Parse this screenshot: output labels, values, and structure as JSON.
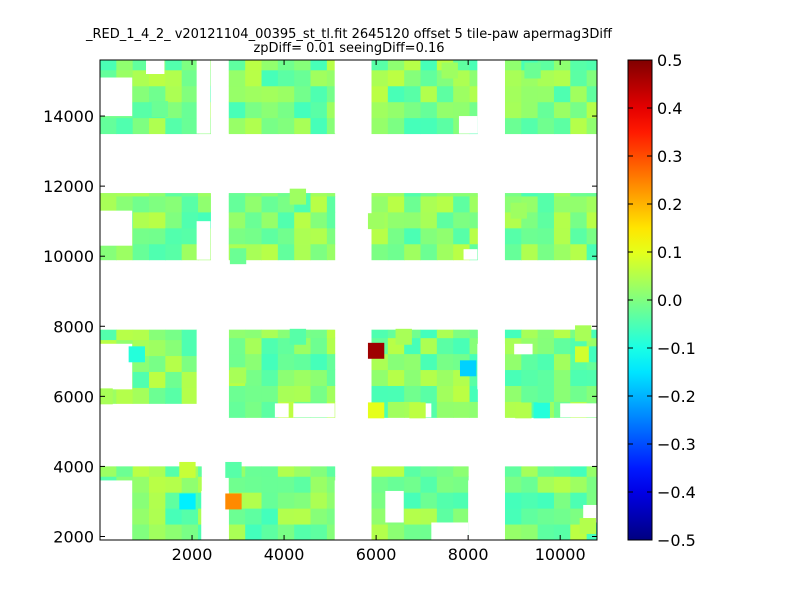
{
  "chart_data": {
    "type": "heatmap",
    "title": "_RED_1_4_2_ v20121104_00395_st_tl.fit 2645120 offset 5 tile-paw apermag3Diff",
    "subtitle": "zpDiff= 0.01 seeingDiff=0.16",
    "xlabel": "",
    "ylabel": "",
    "xlim": [
      0,
      10800
    ],
    "ylim": [
      1900,
      15600
    ],
    "x_ticks": [
      "2000",
      "4000",
      "6000",
      "8000",
      "10000"
    ],
    "y_ticks": [
      "2000",
      "4000",
      "6000",
      "8000",
      "10000",
      "12000",
      "14000"
    ],
    "colorbar": {
      "colormap": "jet",
      "vmin": -0.5,
      "vmax": 0.5,
      "ticks": [
        "0.5",
        "0.4",
        "0.3",
        "0.2",
        "0.1",
        "0.0",
        "−0.1",
        "−0.2",
        "−0.3",
        "−0.4",
        "−0.5"
      ]
    },
    "cell_size": [
      355,
      455
    ],
    "background_value": 0.0,
    "cell_regions": [
      {
        "x": [
          0,
          2200
        ],
        "y": [
          1900,
          4000
        ]
      },
      {
        "x": [
          2800,
          5100
        ],
        "y": [
          1900,
          4000
        ]
      },
      {
        "x": [
          5900,
          8000
        ],
        "y": [
          1900,
          4000
        ]
      },
      {
        "x": [
          8800,
          10800
        ],
        "y": [
          1900,
          4000
        ]
      },
      {
        "x": [
          0,
          2100
        ],
        "y": [
          5800,
          7900
        ]
      },
      {
        "x": [
          2800,
          5100
        ],
        "y": [
          5400,
          7900
        ]
      },
      {
        "x": [
          5900,
          8200
        ],
        "y": [
          5400,
          7900
        ]
      },
      {
        "x": [
          8800,
          10800
        ],
        "y": [
          5400,
          7900
        ]
      },
      {
        "x": [
          0,
          2400
        ],
        "y": [
          9900,
          11800
        ]
      },
      {
        "x": [
          2800,
          5100
        ],
        "y": [
          9900,
          11800
        ]
      },
      {
        "x": [
          5900,
          8200
        ],
        "y": [
          9900,
          11800
        ]
      },
      {
        "x": [
          8800,
          10800
        ],
        "y": [
          9900,
          11800
        ]
      },
      {
        "x": [
          0,
          2400
        ],
        "y": [
          13500,
          15600
        ]
      },
      {
        "x": [
          2800,
          5100
        ],
        "y": [
          13500,
          15600
        ]
      },
      {
        "x": [
          5900,
          8200
        ],
        "y": [
          13500,
          15600
        ]
      },
      {
        "x": [
          8800,
          10800
        ],
        "y": [
          13500,
          15600
        ]
      }
    ],
    "white_gaps": [
      {
        "x": [
          0,
          700
        ],
        "y": [
          1900,
          3600
        ]
      },
      {
        "x": [
          2200,
          2800
        ],
        "y": [
          1900,
          3300
        ]
      },
      {
        "x": [
          5100,
          5900
        ],
        "y": [
          1900,
          3600
        ]
      },
      {
        "x": [
          6200,
          6600
        ],
        "y": [
          2400,
          3300
        ]
      },
      {
        "x": [
          7200,
          8000
        ],
        "y": [
          1900,
          2400
        ]
      },
      {
        "x": [
          8000,
          8800
        ],
        "y": [
          1900,
          3600
        ]
      },
      {
        "x": [
          10500,
          10800
        ],
        "y": [
          2400,
          2900
        ]
      },
      {
        "x": [
          0,
          700
        ],
        "y": [
          6200,
          7500
        ]
      },
      {
        "x": [
          2100,
          2800
        ],
        "y": [
          5400,
          7900
        ]
      },
      {
        "x": [
          4200,
          5100
        ],
        "y": [
          5400,
          5800
        ]
      },
      {
        "x": [
          3800,
          4100
        ],
        "y": [
          5400,
          5800
        ]
      },
      {
        "x": [
          6900,
          7200
        ],
        "y": [
          5400,
          5800
        ]
      },
      {
        "x": [
          8200,
          8800
        ],
        "y": [
          6200,
          7500
        ]
      },
      {
        "x": [
          9000,
          9400
        ],
        "y": [
          7200,
          7500
        ]
      },
      {
        "x": [
          10000,
          10800
        ],
        "y": [
          5400,
          5800
        ]
      },
      {
        "x": [
          0,
          700
        ],
        "y": [
          10300,
          11300
        ]
      },
      {
        "x": [
          2100,
          2400
        ],
        "y": [
          9900,
          11000
        ]
      },
      {
        "x": [
          7900,
          8200
        ],
        "y": [
          9900,
          10200
        ]
      },
      {
        "x": [
          0,
          700
        ],
        "y": [
          14000,
          15100
        ]
      },
      {
        "x": [
          1000,
          1400
        ],
        "y": [
          15200,
          15600
        ]
      },
      {
        "x": [
          2100,
          2400
        ],
        "y": [
          13500,
          15600
        ]
      },
      {
        "x": [
          5100,
          5900
        ],
        "y": [
          13500,
          15600
        ]
      },
      {
        "x": [
          7800,
          8200
        ],
        "y": [
          13500,
          14000
        ]
      },
      {
        "x": [
          8200,
          8800
        ],
        "y": [
          13500,
          15600
        ]
      }
    ],
    "cells": [
      {
        "x": 6000,
        "y": 7300,
        "value": 0.47
      },
      {
        "x": 8000,
        "y": 6800,
        "value": -0.17
      },
      {
        "x": 2900,
        "y": 3000,
        "value": 0.24
      },
      {
        "x": 1900,
        "y": 3000,
        "value": -0.14
      },
      {
        "x": 800,
        "y": 7200,
        "value": -0.09
      },
      {
        "x": 10500,
        "y": 7200,
        "value": 0.08
      },
      {
        "x": 10800,
        "y": 7200,
        "value": -0.06
      },
      {
        "x": 9600,
        "y": 5600,
        "value": -0.09
      },
      {
        "x": 6000,
        "y": 5600,
        "value": 0.1
      },
      {
        "x": 6900,
        "y": 5600,
        "value": 0.06
      },
      {
        "x": 1900,
        "y": 3900,
        "value": 0.07
      },
      {
        "x": 2900,
        "y": 3900,
        "value": -0.04
      },
      {
        "x": 9200,
        "y": 5600,
        "value": 0.05
      },
      {
        "x": 10600,
        "y": 2300,
        "value": 0.05
      },
      {
        "x": 4300,
        "y": 7700,
        "value": -0.04
      },
      {
        "x": 6600,
        "y": 7700,
        "value": 0.04
      },
      {
        "x": 3000,
        "y": 6600,
        "value": 0.04
      },
      {
        "x": 10500,
        "y": 7800,
        "value": 0.04
      },
      {
        "x": 100,
        "y": 6000,
        "value": 0.04
      },
      {
        "x": 9100,
        "y": 11300,
        "value": 0.03
      },
      {
        "x": 6000,
        "y": 11000,
        "value": 0.03
      },
      {
        "x": 7600,
        "y": 15300,
        "value": 0.03
      },
      {
        "x": 9400,
        "y": 15300,
        "value": -0.02
      },
      {
        "x": 1300,
        "y": 14200,
        "value": -0.02
      },
      {
        "x": 3000,
        "y": 10000,
        "value": -0.02
      },
      {
        "x": 4300,
        "y": 11700,
        "value": 0.03
      }
    ]
  }
}
